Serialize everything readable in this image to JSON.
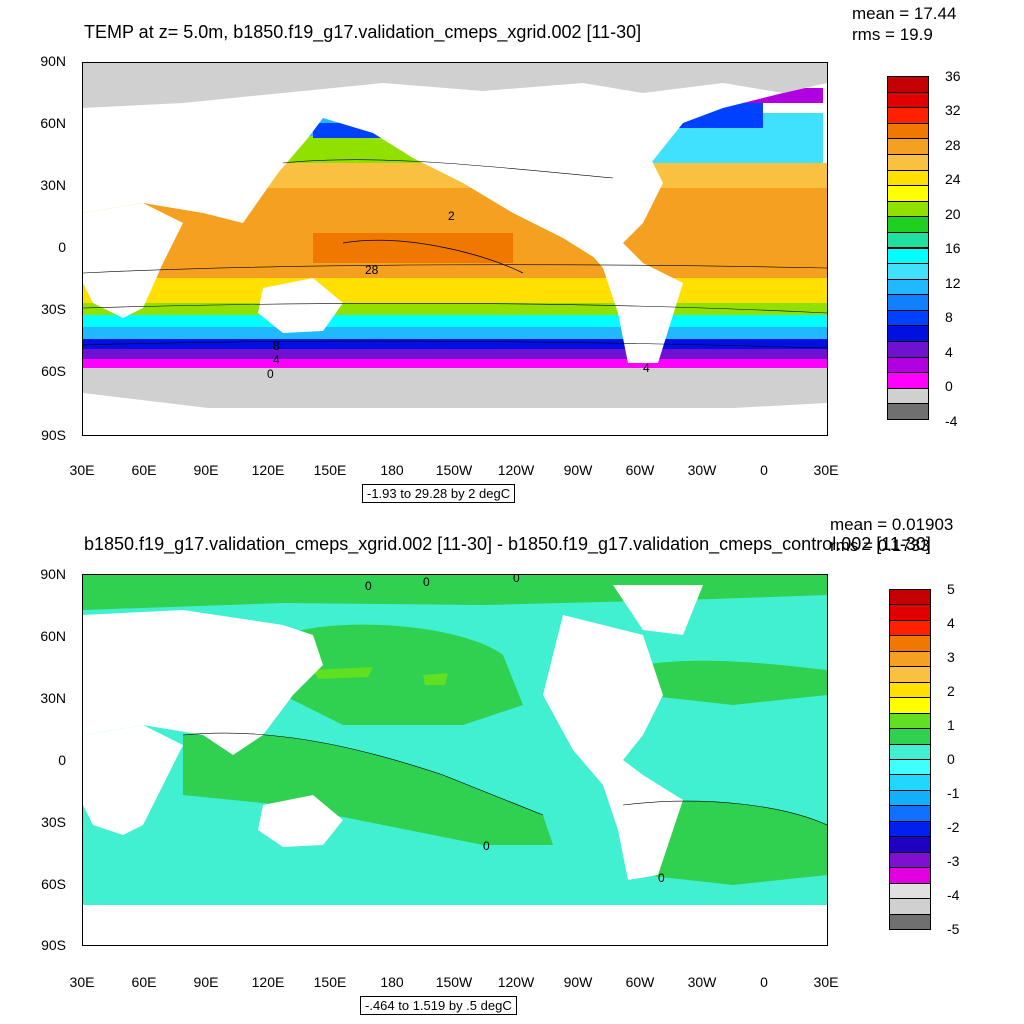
{
  "panel_top": {
    "title": "TEMP at z=   5.0m, b1850.f19_g17.validation_cmeps_xgrid.002 [11-30]",
    "mean": "mean = 17.44",
    "rms": "rms = 19.9",
    "range": "-1.93 to 29.28 by 2 degC",
    "y_labels": [
      "90N",
      "60N",
      "30N",
      "0",
      "30S",
      "60S",
      "90S"
    ],
    "x_labels": [
      "30E",
      "60E",
      "90E",
      "120E",
      "150E",
      "180",
      "150W",
      "120W",
      "90W",
      "60W",
      "30W",
      "0",
      "30E"
    ],
    "contour_labels": [
      "2",
      "28",
      "8",
      "4",
      "0",
      "4"
    ],
    "colorbar": {
      "labels": [
        "36",
        "32",
        "28",
        "24",
        "20",
        "16",
        "12",
        "8",
        "4",
        "0",
        "-4"
      ],
      "colors": [
        "#c40000",
        "#e00000",
        "#ff2000",
        "#f07800",
        "#f5a020",
        "#fac040",
        "#ffe000",
        "#ffff00",
        "#90e000",
        "#20d020",
        "#20e0a0",
        "#00ffff",
        "#40e0ff",
        "#20b8ff",
        "#1080ff",
        "#0040ff",
        "#0010e0",
        "#7010d0",
        "#b000e0",
        "#ff00ff",
        "#d0d0d0",
        "#707070"
      ]
    }
  },
  "panel_bottom": {
    "title": "b1850.f19_g17.validation_cmeps_xgrid.002 [11-30] - b1850.f19_g17.validation_cmeps_control.002 [11-30]",
    "mean": "mean = 0.01903",
    "rms": "rms = 0.1733",
    "range": "-.464 to 1.519 by .5 degC",
    "y_labels": [
      "90N",
      "60N",
      "30N",
      "0",
      "30S",
      "60S",
      "90S"
    ],
    "x_labels": [
      "30E",
      "60E",
      "90E",
      "120E",
      "150E",
      "180",
      "150W",
      "120W",
      "90W",
      "60W",
      "30W",
      "0",
      "30E"
    ],
    "contour_labels": [
      "0",
      "0",
      "0",
      "0",
      "0"
    ],
    "colorbar": {
      "labels": [
        "5",
        "4",
        "3",
        "2",
        "1",
        "0",
        "-1",
        "-2",
        "-3",
        "-4",
        "-5"
      ],
      "colors": [
        "#c40000",
        "#e00000",
        "#ff2000",
        "#f07800",
        "#f5a020",
        "#fac040",
        "#ffe000",
        "#ffff00",
        "#60e020",
        "#30d050",
        "#40f0d0",
        "#40ffff",
        "#20d8ff",
        "#10b0ff",
        "#1070ff",
        "#0020f0",
        "#2000c0",
        "#8010d0",
        "#e000e0",
        "#e0e0e0",
        "#d0d0d0",
        "#707070"
      ]
    }
  }
}
